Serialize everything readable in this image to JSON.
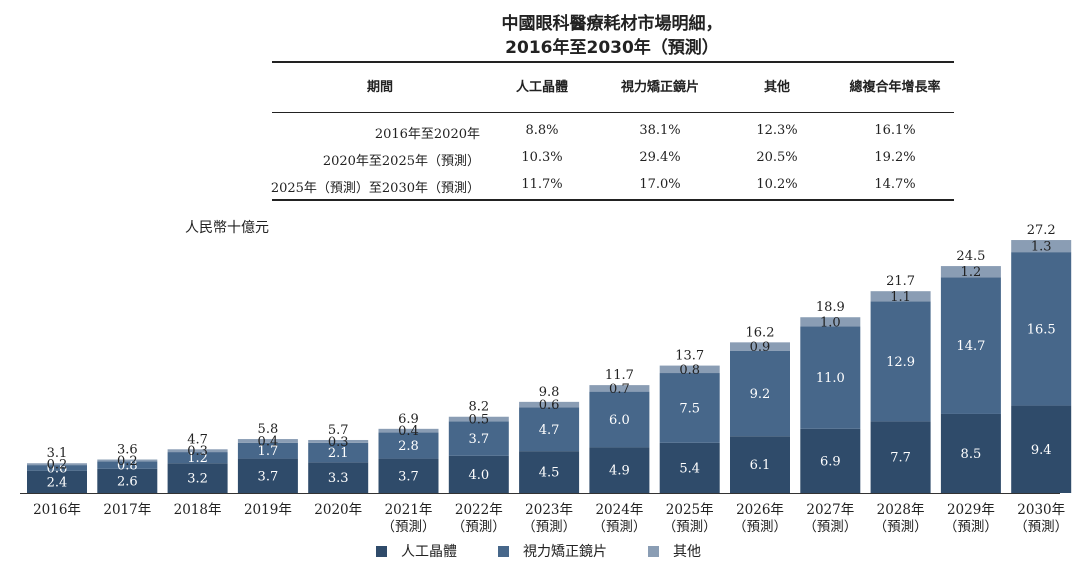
{
  "title": {
    "line1": "中國眼科醫療耗材市場明細，",
    "line2": "2016年至2030年（預測）"
  },
  "table": {
    "headers": [
      "期間",
      "人工晶體",
      "視力矯正鏡片",
      "其他",
      "總複合年增長率"
    ],
    "rows": [
      {
        "period": "2016年至2020年",
        "iol": "8.8%",
        "lens": "38.1%",
        "other": "12.3%",
        "total": "16.1%"
      },
      {
        "period": "2020年至2025年（預測）",
        "iol": "10.3%",
        "lens": "29.4%",
        "other": "20.5%",
        "total": "19.2%"
      },
      {
        "period": "2025年（預測）至2030年（預測）",
        "iol": "11.7%",
        "lens": "17.0%",
        "other": "10.2%",
        "total": "14.7%"
      }
    ]
  },
  "colors": {
    "iol": "#2f4b6a",
    "lens": "#47678a",
    "other": "#8a9db4"
  },
  "chart_data": {
    "type": "bar",
    "stacked": true,
    "unit_label": "人民幣十億元",
    "categories": [
      {
        "year": "2016年",
        "sub": ""
      },
      {
        "year": "2017年",
        "sub": ""
      },
      {
        "year": "2018年",
        "sub": ""
      },
      {
        "year": "2019年",
        "sub": ""
      },
      {
        "year": "2020年",
        "sub": ""
      },
      {
        "year": "2021年",
        "sub": "（預測）"
      },
      {
        "year": "2022年",
        "sub": "（預測）"
      },
      {
        "year": "2023年",
        "sub": "（預測）"
      },
      {
        "year": "2024年",
        "sub": "（預測）"
      },
      {
        "year": "2025年",
        "sub": "（預測）"
      },
      {
        "year": "2026年",
        "sub": "（預測）"
      },
      {
        "year": "2027年",
        "sub": "（預測）"
      },
      {
        "year": "2028年",
        "sub": "（預測）"
      },
      {
        "year": "2029年",
        "sub": "（預測）"
      },
      {
        "year": "2030年",
        "sub": "（預測）"
      }
    ],
    "series": [
      {
        "name": "人工晶體",
        "key": "iol",
        "values": [
          "2.4",
          "2.6",
          "3.2",
          "3.7",
          "3.3",
          "3.7",
          "4.0",
          "4.5",
          "4.9",
          "5.4",
          "6.1",
          "6.9",
          "7.7",
          "8.5",
          "9.4"
        ]
      },
      {
        "name": "視力矯正鏡片",
        "key": "lens",
        "values": [
          "0.6",
          "0.8",
          "1.2",
          "1.7",
          "2.1",
          "2.8",
          "3.7",
          "4.7",
          "6.0",
          "7.5",
          "9.2",
          "11.0",
          "12.9",
          "14.7",
          "16.5"
        ]
      },
      {
        "name": "其他",
        "key": "other",
        "values": [
          "0.2",
          "0.2",
          "0.3",
          "0.4",
          "0.3",
          "0.4",
          "0.5",
          "0.6",
          "0.7",
          "0.8",
          "0.9",
          "1.0",
          "1.1",
          "1.2",
          "1.3"
        ]
      }
    ],
    "totals": [
      "3.1",
      "3.6",
      "4.7",
      "5.8",
      "5.7",
      "6.9",
      "8.2",
      "9.8",
      "11.7",
      "13.7",
      "16.2",
      "18.9",
      "21.7",
      "24.5",
      "27.2"
    ],
    "ylim": [
      0,
      30
    ]
  }
}
